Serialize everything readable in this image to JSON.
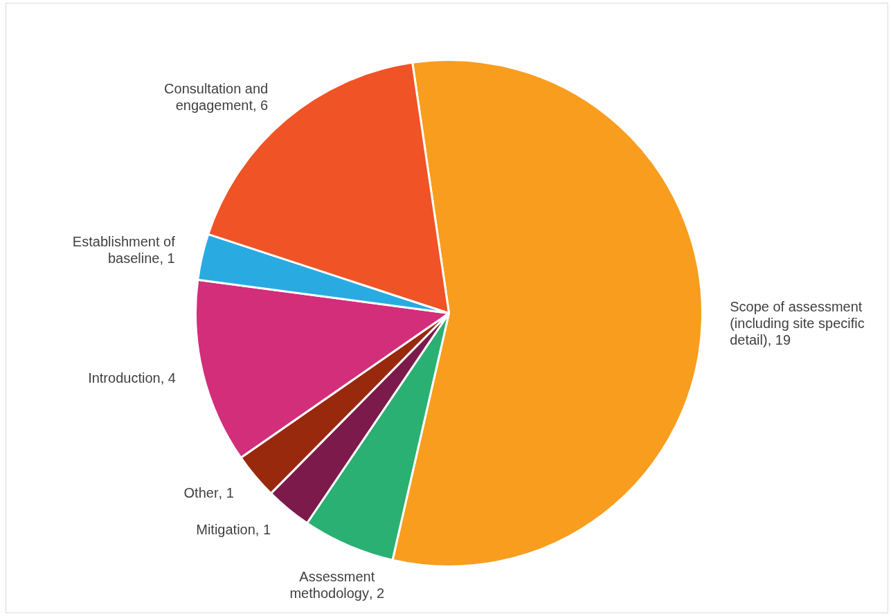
{
  "chart_data": {
    "type": "pie",
    "categories": [
      "Scope of assessment (including site specific detail)",
      "Assessment methodology",
      "Mitigation",
      "Other",
      "Introduction",
      "Establishment of baseline",
      "Consultation and engagement"
    ],
    "values": [
      19,
      2,
      1,
      1,
      4,
      1,
      6
    ],
    "colors": [
      "#f99d1f",
      "#2ab073",
      "#7b1a4b",
      "#99290c",
      "#d22e7a",
      "#29abe2",
      "#f05325"
    ],
    "value_labels": [
      ", 19",
      ", 2",
      ", 1",
      ", 1",
      ", 4",
      ", 1",
      ", 6"
    ],
    "legend": false
  }
}
